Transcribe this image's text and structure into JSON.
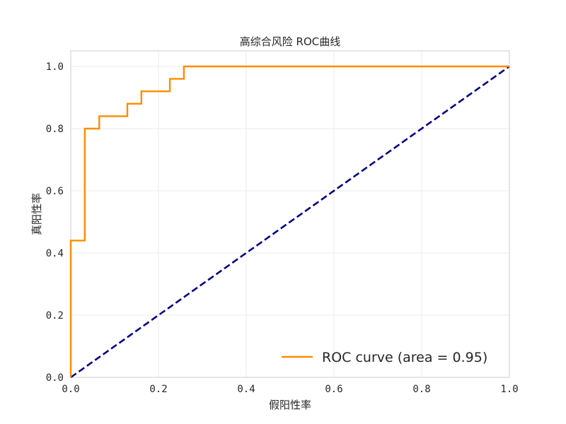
{
  "chart_data": {
    "type": "line",
    "title": "高综合风险 ROC曲线",
    "xlabel": "假阳性率",
    "ylabel": "真阳性率",
    "xlim": [
      0.0,
      1.0
    ],
    "ylim": [
      0.0,
      1.05
    ],
    "xticks": [
      "0.0",
      "0.2",
      "0.4",
      "0.6",
      "0.8",
      "1.0"
    ],
    "yticks": [
      "0.0",
      "0.2",
      "0.4",
      "0.6",
      "0.8",
      "1.0"
    ],
    "grid": true,
    "legend_position": "lower-right",
    "series": [
      {
        "name": "ROC curve (area = 0.95)",
        "color": "#ff8c00",
        "style": "solid",
        "x": [
          0.0,
          0.0,
          0.032,
          0.032,
          0.065,
          0.065,
          0.129,
          0.129,
          0.161,
          0.161,
          0.226,
          0.226,
          0.258,
          0.258,
          1.0
        ],
        "y": [
          0.0,
          0.44,
          0.44,
          0.8,
          0.8,
          0.84,
          0.84,
          0.88,
          0.88,
          0.92,
          0.92,
          0.96,
          0.96,
          1.0,
          1.0
        ]
      },
      {
        "name": "",
        "color": "#000080",
        "style": "dashed",
        "x": [
          0.0,
          1.0
        ],
        "y": [
          0.0,
          1.0
        ]
      }
    ]
  }
}
